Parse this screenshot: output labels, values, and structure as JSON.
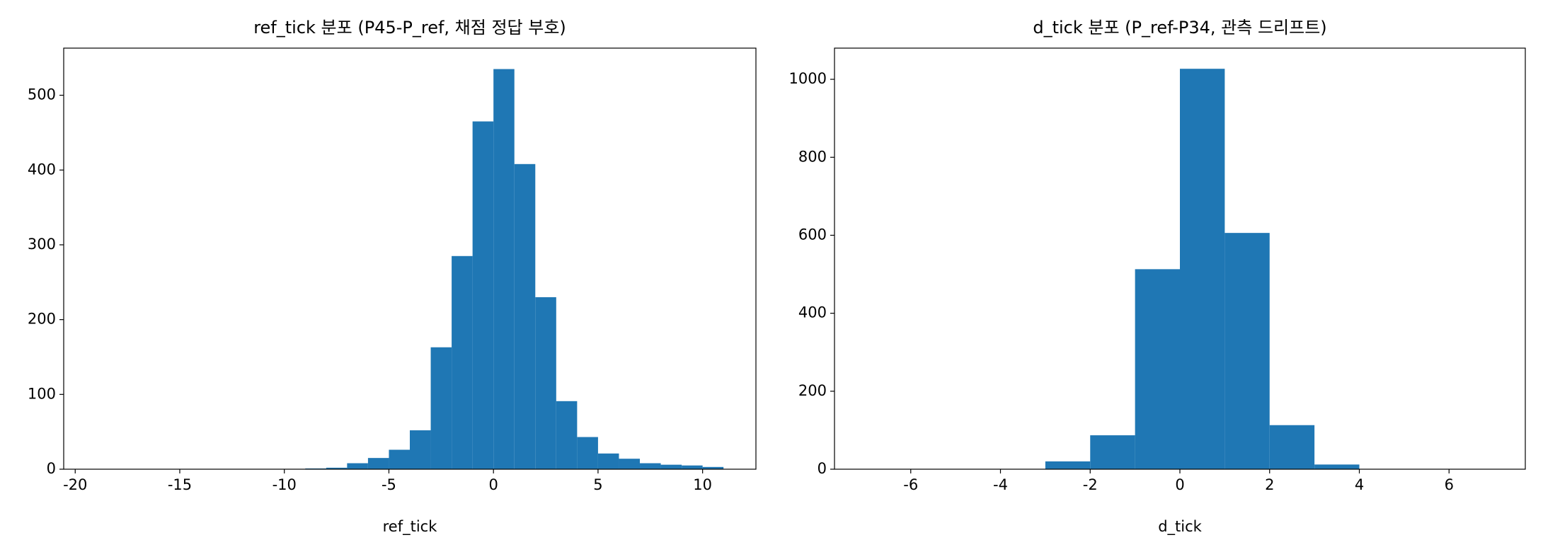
{
  "chart_data": [
    {
      "type": "histogram",
      "title": "ref_tick 분포 (P45-P_ref, 채점 정답 부호)",
      "xlabel": "ref_tick",
      "color": "#1f77b4",
      "bins": [
        -20,
        -19,
        -18,
        -17,
        -16,
        -15,
        -14,
        -13,
        -12,
        -11,
        -10,
        -9,
        -8,
        -7,
        -6,
        -5,
        -4,
        -3,
        -2,
        -1,
        0,
        1,
        2,
        3,
        4,
        5,
        6,
        7,
        8,
        9,
        10,
        11
      ],
      "values": [
        0,
        0,
        0,
        0,
        0,
        0,
        0,
        0,
        0,
        0,
        0,
        1,
        2,
        8,
        15,
        26,
        52,
        163,
        285,
        465,
        535,
        408,
        230,
        91,
        43,
        21,
        14,
        8,
        6,
        5,
        3
      ],
      "xlim": [
        -20.55,
        12.55
      ],
      "xticks": [
        -20,
        -15,
        -10,
        -5,
        0,
        5,
        10
      ],
      "ylim": [
        0,
        563
      ],
      "yticks": [
        0,
        100,
        200,
        300,
        400,
        500
      ]
    },
    {
      "type": "histogram",
      "title": "d_tick 분포 (P_ref-P34, 관측 드리프트)",
      "xlabel": "d_tick",
      "color": "#1f77b4",
      "bins": [
        -7,
        -6,
        -5,
        -4,
        -3,
        -2,
        -1,
        0,
        1,
        2,
        3,
        4,
        5,
        6,
        7
      ],
      "values": [
        0,
        0,
        0,
        0,
        20,
        87,
        513,
        1027,
        606,
        113,
        12,
        0,
        0,
        0
      ],
      "xlim": [
        -7.7,
        7.7
      ],
      "xticks": [
        -6,
        -4,
        -2,
        0,
        2,
        4,
        6
      ],
      "ylim": [
        0,
        1080
      ],
      "yticks": [
        0,
        200,
        400,
        600,
        800,
        1000
      ]
    }
  ]
}
